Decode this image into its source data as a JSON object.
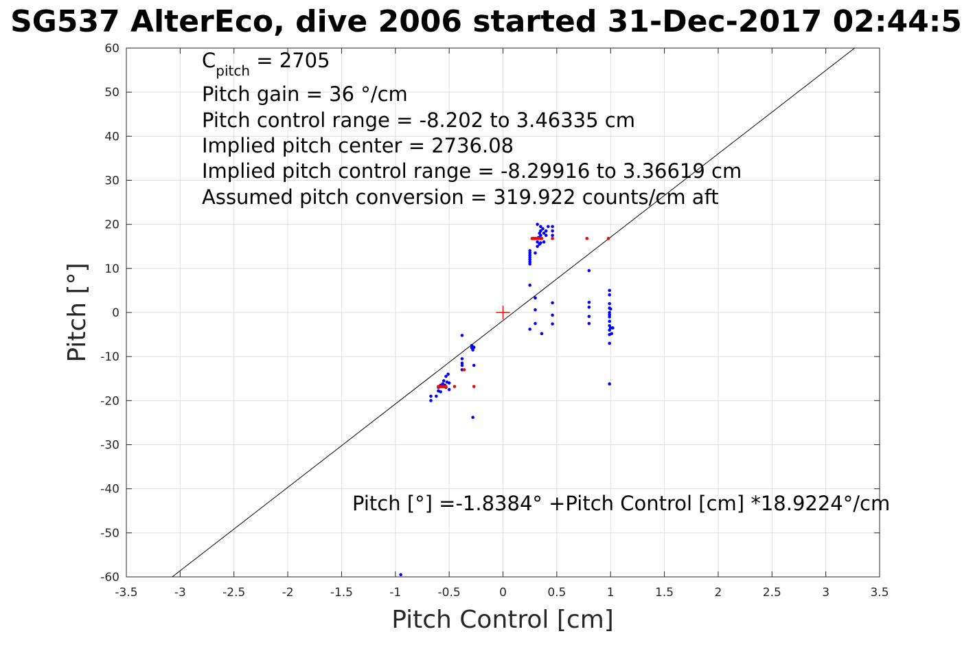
{
  "chart_data": {
    "type": "scatter",
    "title": "SG537 AlterEco, dive 2006 started 31-Dec-2017 02:44:5",
    "xlabel": "Pitch Control [cm]",
    "ylabel": "Pitch [°]",
    "xlim": [
      -3.5,
      3.5
    ],
    "ylim": [
      -60,
      60
    ],
    "xticks": [
      -3.5,
      -3,
      -2.5,
      -2,
      -1.5,
      -1,
      -0.5,
      0,
      0.5,
      1,
      1.5,
      2,
      2.5,
      3,
      3.5
    ],
    "yticks": [
      -60,
      -50,
      -40,
      -30,
      -20,
      -10,
      0,
      10,
      20,
      30,
      40,
      50,
      60
    ],
    "xtick_labels": [
      "-3.5",
      "-3",
      "-2.5",
      "-2",
      "-1.5",
      "-1",
      "-0.5",
      "0",
      "0.5",
      "1",
      "1.5",
      "2",
      "2.5",
      "3",
      "3.5"
    ],
    "ytick_labels": [
      "-60",
      "-50",
      "-40",
      "-30",
      "-20",
      "-10",
      "0",
      "10",
      "20",
      "30",
      "40",
      "50",
      "60"
    ],
    "grid": true,
    "annotations": {
      "cpitch_main": "C",
      "cpitch_sub": "pitch",
      "cpitch_value": " = 2705",
      "lines": [
        "Pitch gain = 36 °/cm",
        "Pitch control range = -8.202 to 3.46335 cm",
        "Implied pitch center = 2736.08",
        "Implied pitch control range = -8.29916 to 3.36619 cm",
        "Assumed pitch conversion = 319.922 counts/cm aft"
      ],
      "fit_equation": "Pitch [°] =-1.8384° +Pitch Control [cm] *18.9224°/cm"
    },
    "fit_line": {
      "intercept": -1.8384,
      "slope": 18.9224,
      "color": "#000000"
    },
    "center_marker": {
      "x": 0,
      "y": 0,
      "color": "#ff0000"
    },
    "series": [
      {
        "color": "#0000ff",
        "points": [
          [
            -0.95,
            -59.5
          ],
          [
            -0.67,
            -20.0
          ],
          [
            -0.67,
            -19.0
          ],
          [
            -0.62,
            -19.0
          ],
          [
            -0.6,
            -17.8
          ],
          [
            -0.6,
            -17.0
          ],
          [
            -0.58,
            -16.5
          ],
          [
            -0.58,
            -18.0
          ],
          [
            -0.56,
            -16.2
          ],
          [
            -0.55,
            -15.5
          ],
          [
            -0.54,
            -16.5
          ],
          [
            -0.53,
            -14.5
          ],
          [
            -0.53,
            -17.0
          ],
          [
            -0.52,
            -15.8
          ],
          [
            -0.51,
            -14.0
          ],
          [
            -0.5,
            -16.0
          ],
          [
            -0.5,
            -17.5
          ],
          [
            -0.38,
            -5.2
          ],
          [
            -0.38,
            -10.5
          ],
          [
            -0.38,
            -11.5
          ],
          [
            -0.38,
            -12.0
          ],
          [
            -0.38,
            -13.0
          ],
          [
            -0.29,
            -7.5
          ],
          [
            -0.29,
            -8.0
          ],
          [
            -0.28,
            -7.8
          ],
          [
            -0.28,
            -8.5
          ],
          [
            -0.27,
            -7.9
          ],
          [
            -0.27,
            -12.0
          ],
          [
            -0.28,
            -23.8
          ],
          [
            0.25,
            6.2
          ],
          [
            0.25,
            -3.8
          ],
          [
            0.25,
            14.0
          ],
          [
            0.25,
            13.5
          ],
          [
            0.25,
            13.0
          ],
          [
            0.25,
            12.5
          ],
          [
            0.25,
            12.0
          ],
          [
            0.25,
            11.5
          ],
          [
            0.25,
            11.0
          ],
          [
            0.3,
            3.3
          ],
          [
            0.3,
            0.6
          ],
          [
            0.3,
            -2.5
          ],
          [
            0.3,
            13.5
          ],
          [
            0.32,
            20.0
          ],
          [
            0.32,
            16.0
          ],
          [
            0.32,
            15.0
          ],
          [
            0.33,
            17.0
          ],
          [
            0.34,
            18.0
          ],
          [
            0.34,
            15.5
          ],
          [
            0.35,
            19.5
          ],
          [
            0.35,
            18.5
          ],
          [
            0.35,
            17.5
          ],
          [
            0.35,
            15.8
          ],
          [
            0.36,
            -4.8
          ],
          [
            0.37,
            19.0
          ],
          [
            0.38,
            18.0
          ],
          [
            0.38,
            16.0
          ],
          [
            0.4,
            18.5
          ],
          [
            0.4,
            17.5
          ],
          [
            0.42,
            19.5
          ],
          [
            0.46,
            19.5
          ],
          [
            0.46,
            18.5
          ],
          [
            0.46,
            17.5
          ],
          [
            0.46,
            2.2
          ],
          [
            0.46,
            -0.6
          ],
          [
            0.46,
            -2.6
          ],
          [
            0.8,
            9.5
          ],
          [
            0.8,
            2.3
          ],
          [
            0.8,
            1.2
          ],
          [
            0.8,
            -0.9
          ],
          [
            0.8,
            -2.5
          ],
          [
            0.99,
            5.0
          ],
          [
            0.99,
            4.0
          ],
          [
            0.99,
            2.0
          ],
          [
            0.99,
            1.0
          ],
          [
            0.99,
            0.0
          ],
          [
            0.99,
            -0.5
          ],
          [
            0.99,
            -1.0
          ],
          [
            0.99,
            -2.0
          ],
          [
            0.99,
            -3.0
          ],
          [
            0.99,
            -4.0
          ],
          [
            0.99,
            -5.0
          ],
          [
            0.99,
            -7.0
          ],
          [
            0.99,
            -16.2
          ],
          [
            1.0,
            0.8
          ],
          [
            1.0,
            -3.5
          ],
          [
            1.01,
            -4.8
          ],
          [
            1.02,
            -3.5
          ]
        ]
      },
      {
        "color": "#ff0000",
        "points": [
          [
            -0.6,
            -16.8
          ],
          [
            -0.59,
            -16.8
          ],
          [
            -0.58,
            -16.8
          ],
          [
            -0.57,
            -16.8
          ],
          [
            -0.56,
            -16.8
          ],
          [
            -0.55,
            -16.8
          ],
          [
            -0.54,
            -16.8
          ],
          [
            -0.53,
            -16.8
          ],
          [
            -0.45,
            -16.8
          ],
          [
            -0.27,
            -16.8
          ],
          [
            -0.36,
            -13.0
          ],
          [
            0.27,
            16.8
          ],
          [
            0.28,
            16.8
          ],
          [
            0.29,
            16.8
          ],
          [
            0.3,
            16.8
          ],
          [
            0.31,
            16.8
          ],
          [
            0.32,
            16.8
          ],
          [
            0.33,
            16.8
          ],
          [
            0.34,
            16.8
          ],
          [
            0.35,
            16.8
          ],
          [
            0.36,
            16.8
          ],
          [
            0.46,
            16.8
          ],
          [
            0.78,
            16.8
          ],
          [
            0.98,
            16.8
          ]
        ]
      }
    ]
  }
}
